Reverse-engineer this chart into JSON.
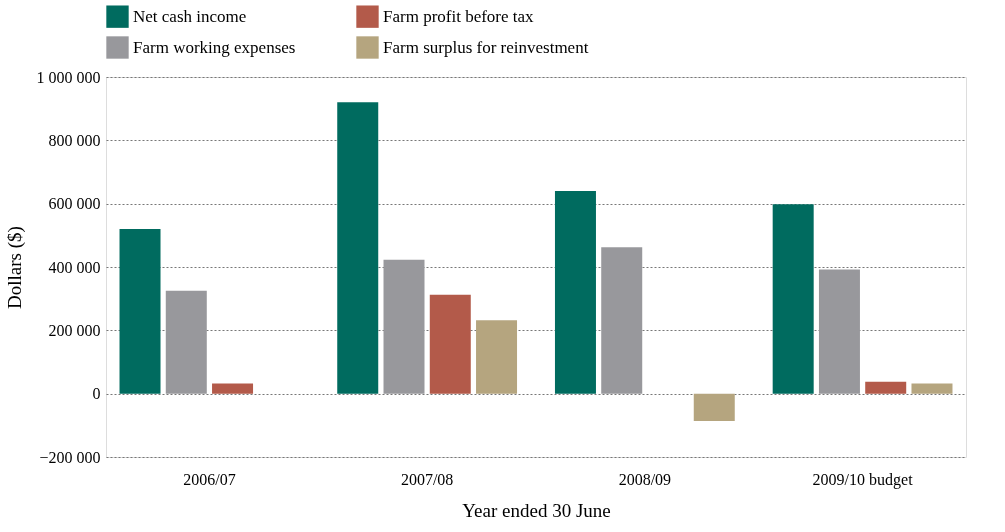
{
  "chart_data": {
    "type": "bar",
    "xlabel": "Year ended 30 June",
    "ylabel": "Dollars ($)",
    "categories": [
      "2006/07",
      "2007/08",
      "2008/09",
      "2009/10 budget"
    ],
    "series": [
      {
        "name": "Net cash income",
        "color": "#006b5f",
        "values": [
          520000,
          920000,
          640000,
          598000
        ]
      },
      {
        "name": "Farm working expenses",
        "color": "#98989c",
        "values": [
          325000,
          423000,
          462000,
          392000
        ]
      },
      {
        "name": "Farm profit before tax",
        "color": "#b35a4a",
        "values": [
          32000,
          312000,
          null,
          38000
        ]
      },
      {
        "name": "Farm surplus for reinvestment",
        "color": "#b5a57f",
        "values": [
          null,
          232000,
          -86000,
          32000
        ]
      }
    ],
    "ylim": [
      -200000,
      1000000
    ],
    "yticks": [
      {
        "value": -200000,
        "label": "−200 000"
      },
      {
        "value": 0,
        "label": "0"
      },
      {
        "value": 200000,
        "label": "200 000"
      },
      {
        "value": 400000,
        "label": "400 000"
      },
      {
        "value": 600000,
        "label": "600 000"
      },
      {
        "value": 800000,
        "label": "800 000"
      },
      {
        "value": 1000000,
        "label": "1 000 000"
      }
    ],
    "grid": "y",
    "legend": "top"
  }
}
